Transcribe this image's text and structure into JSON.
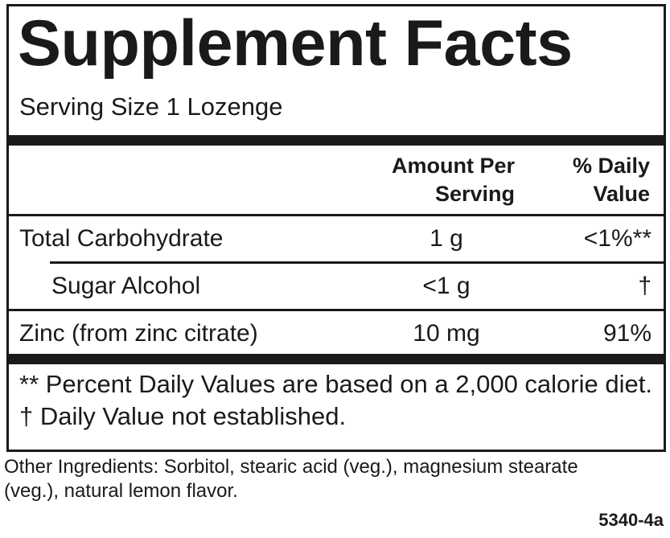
{
  "header": {
    "title": "Supplement Facts",
    "serving_size": "Serving Size 1 Lozenge"
  },
  "table": {
    "columns": {
      "amount": "Amount Per Serving",
      "daily_value": "% Daily Value"
    },
    "rows": [
      [
        "Total Carbohydrate",
        "1 g",
        "<1%**"
      ],
      [
        "Sugar Alcohol",
        "<1 g",
        "†"
      ],
      [
        "Zinc (from zinc citrate)",
        "10 mg",
        "91%"
      ]
    ]
  },
  "footnote": "** Percent Daily Values are based on a 2,000 calorie diet. † Daily Value not established.",
  "other_ingredients": "Other Ingredients: Sorbitol, stearic acid (veg.), magnesium stearate (veg.), natural lemon flavor.",
  "code": "5340-4a"
}
